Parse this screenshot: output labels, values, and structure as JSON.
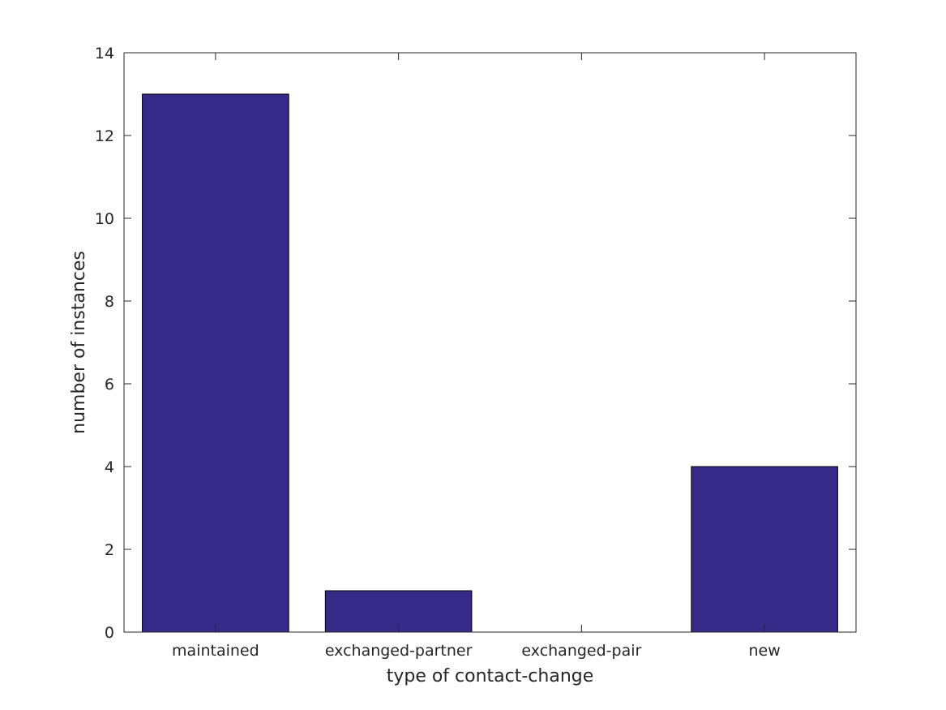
{
  "chart_data": {
    "type": "bar",
    "categories": [
      "maintained",
      "exchanged-partner",
      "exchanged-pair",
      "new"
    ],
    "values": [
      13,
      1,
      0,
      4
    ],
    "xlabel": "type of contact-change",
    "ylabel": "number of instances",
    "ylim": [
      0,
      14
    ],
    "yticks": [
      0,
      2,
      4,
      6,
      8,
      10,
      12,
      14
    ],
    "grid": false,
    "bar_color": "#352a87",
    "edge_color": "#000000"
  }
}
